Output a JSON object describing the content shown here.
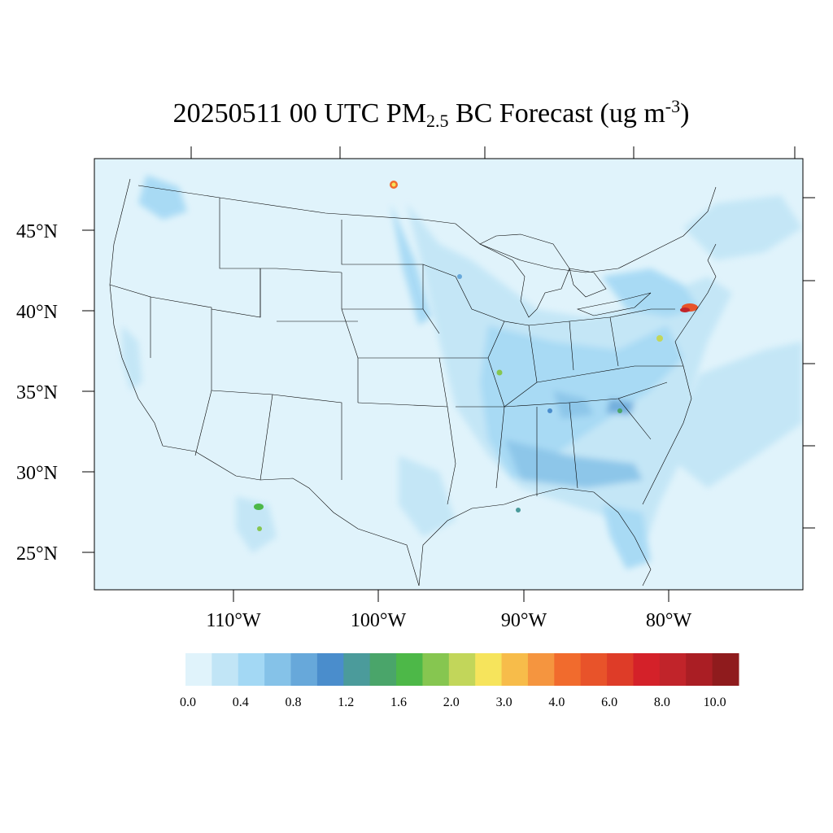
{
  "title": {
    "date_time": "20250511 00 UTC PM",
    "subscript": "2.5",
    "rest": " BC Forecast (ug m",
    "superscript": "-3",
    "close": ")"
  },
  "map": {
    "lat_labels": [
      "45°N",
      "40°N",
      "35°N",
      "30°N",
      "25°N"
    ],
    "lon_labels": [
      "110°W",
      "100°W",
      "90°W",
      "80°W"
    ],
    "background_color": "#e0f3fb"
  },
  "colorbar": {
    "colors": [
      "#e0f3fb",
      "#c1e5f6",
      "#a3d8f4",
      "#85c2e8",
      "#67a8da",
      "#4a8dcc",
      "#4b9b9b",
      "#4aa56a",
      "#4db848",
      "#86c650",
      "#c2d65a",
      "#f6e45c",
      "#f7bc4a",
      "#f5953f",
      "#f16b2d",
      "#e8532a",
      "#de3c28",
      "#d42129",
      "#c1242a",
      "#aa1e24",
      "#8f1b1d"
    ],
    "labels": [
      "0.0",
      "0.4",
      "0.8",
      "1.2",
      "1.6",
      "2.0",
      "3.0",
      "4.0",
      "6.0",
      "8.0",
      "10.0"
    ]
  }
}
